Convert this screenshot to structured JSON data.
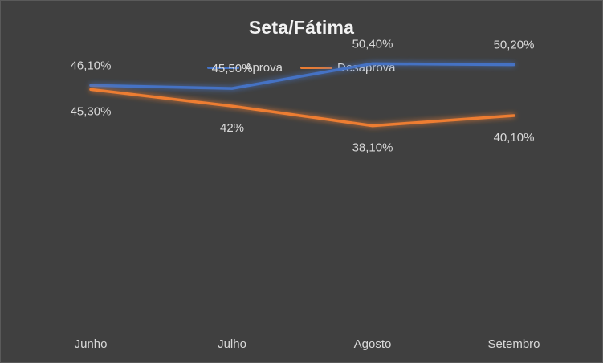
{
  "chart_data": {
    "type": "line",
    "title": "Seta/Fátima",
    "categories": [
      "Junho",
      "Julho",
      "Agosto",
      "Setembro"
    ],
    "series": [
      {
        "name": "Aprova",
        "color": "#4472c4",
        "values": [
          46.1,
          45.5,
          50.4,
          50.2
        ],
        "labels": [
          "46,10%",
          "45,50%",
          "50,40%",
          "50,20%"
        ]
      },
      {
        "name": "Desaprova",
        "color": "#ed7d31",
        "values": [
          45.3,
          42,
          38.1,
          40.1
        ],
        "labels": [
          "45,30%",
          "42%",
          "38,10%",
          "40,10%"
        ]
      }
    ],
    "xlabel": "",
    "ylabel": "",
    "axes_visible": false,
    "grid": false,
    "legend": "top",
    "background": "#404040"
  }
}
